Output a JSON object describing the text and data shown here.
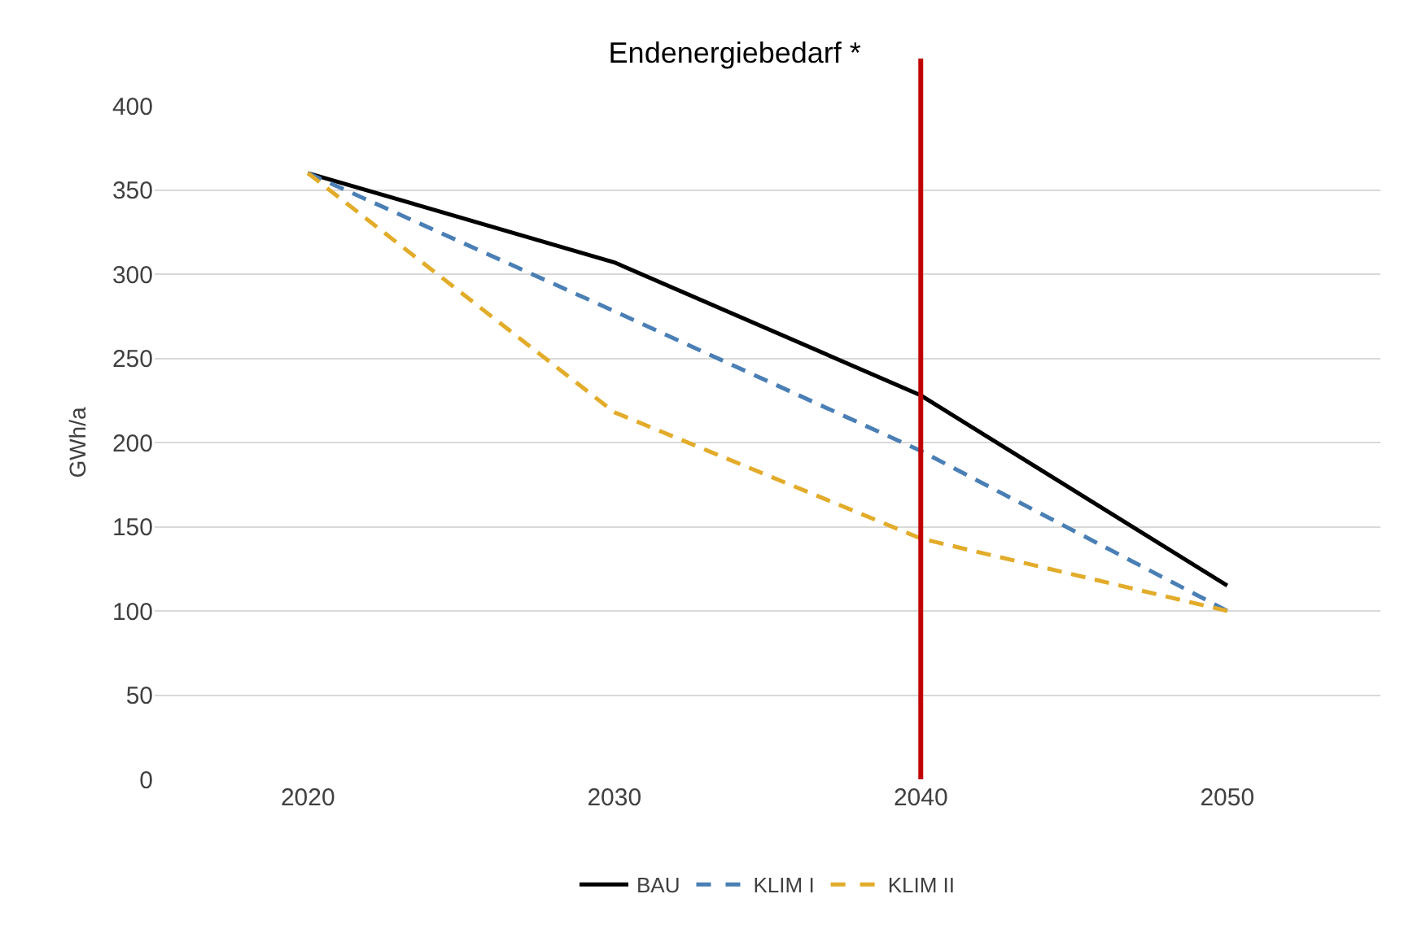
{
  "chart_data": {
    "type": "line",
    "title": "Endenergiebedarf *",
    "ylabel": "GWh/a",
    "categories": [
      "2020",
      "2030",
      "2040",
      "2050"
    ],
    "series": [
      {
        "name": "BAU",
        "color": "#000000",
        "line_style": "solid",
        "values": [
          360,
          307,
          228,
          115
        ]
      },
      {
        "name": "KLIM I",
        "color": "#4a7fb5",
        "line_style": "dashed",
        "values": [
          360,
          278,
          195,
          100
        ]
      },
      {
        "name": "KLIM II",
        "color": "#e2ac2a",
        "line_style": "dashed",
        "values": [
          360,
          218,
          143,
          100
        ]
      }
    ],
    "ylim": [
      0,
      400
    ],
    "yticks": [
      0,
      50,
      100,
      150,
      200,
      250,
      300,
      350,
      400
    ],
    "ref_lines": [
      {
        "axis": "x",
        "value": "2040",
        "color": "#c00000"
      }
    ],
    "grid": "y",
    "legend": "bottom",
    "marker": "none"
  }
}
